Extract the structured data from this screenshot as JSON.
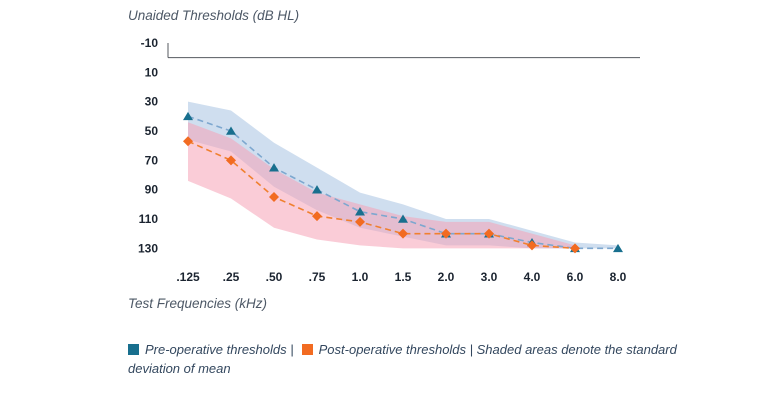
{
  "chart_data": {
    "type": "line",
    "title": "Unaided Thresholds (dB HL)",
    "xlabel": "Test Frequencies (kHz)",
    "categories": [
      ".125",
      ".25",
      ".50",
      ".75",
      "1.0",
      "1.5",
      "2.0",
      "3.0",
      "4.0",
      "6.0",
      "8.0"
    ],
    "y_ticks": [
      -10,
      10,
      30,
      50,
      70,
      90,
      110,
      130
    ],
    "y_range": [
      -10,
      140
    ],
    "y_axis_inverted": true,
    "grid": false,
    "legend_position": "bottom",
    "series": [
      {
        "name": "Pre-operative thresholds",
        "marker": "triangle",
        "color": "#186f8e",
        "line_color": "#7da7cf",
        "band_color": "#a8c2e2",
        "values": [
          40,
          50,
          75,
          90,
          105,
          110,
          120,
          120,
          126,
          130,
          130
        ],
        "band_low": [
          30,
          36,
          58,
          75,
          92,
          100,
          110,
          110,
          118,
          126,
          128
        ],
        "band_high": [
          56,
          64,
          88,
          104,
          116,
          122,
          128,
          128,
          130,
          130,
          130
        ]
      },
      {
        "name": "Post-operative thresholds",
        "marker": "diamond",
        "color": "#f26b21",
        "line_color": "#f0802f",
        "band_color": "#f6a3b6",
        "values": [
          57,
          70,
          95,
          108,
          112,
          120,
          120,
          120,
          128,
          130,
          null
        ],
        "band_low": [
          44,
          55,
          76,
          92,
          100,
          108,
          112,
          112,
          120,
          128,
          null
        ],
        "band_high": [
          84,
          96,
          116,
          124,
          128,
          130,
          130,
          130,
          130,
          130,
          null
        ]
      }
    ],
    "legend_note": "Shaded areas denote the standard deviation of mean"
  },
  "legend": {
    "pre_text": "Pre-operative thresholds |",
    "post_text": "Post-operative thresholds | Shaded areas denote the standard deviation of mean"
  }
}
